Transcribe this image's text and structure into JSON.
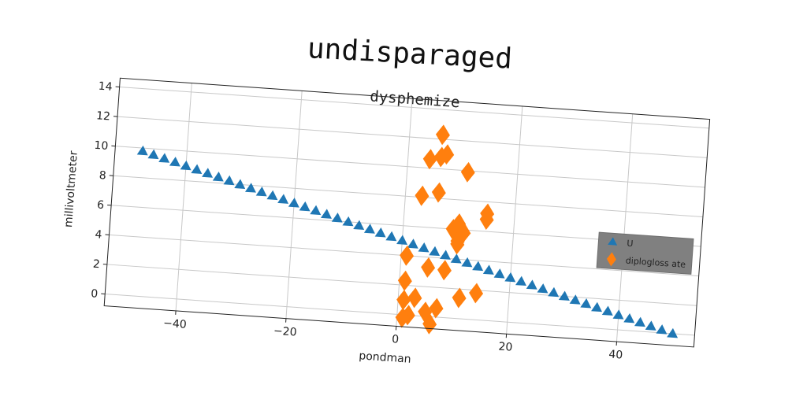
{
  "page": {
    "suptitle": "undisparaged"
  },
  "chart_data": {
    "type": "scatter",
    "title": "dysphemize",
    "xlabel": "pondman",
    "ylabel": "millivoltmeter",
    "xlim": [
      -53,
      54
    ],
    "ylim": [
      -0.8,
      14.6
    ],
    "xticks": [
      -40,
      -20,
      0,
      20,
      40
    ],
    "yticks": [
      0,
      2,
      4,
      6,
      8,
      10,
      12,
      14
    ],
    "grid": true,
    "legend_position": "right",
    "legend_background": "#808080",
    "series": [
      {
        "name": "U",
        "marker": "triangle",
        "color": "#1f77b4",
        "x": [
          -48,
          -46,
          -44,
          -42,
          -40,
          -38,
          -36,
          -34,
          -32,
          -30,
          -28,
          -26,
          -24,
          -22,
          -20,
          -18,
          -16,
          -14,
          -12,
          -10,
          -8,
          -6,
          -4,
          -2,
          0,
          2,
          4,
          6,
          8,
          10,
          12,
          14,
          16,
          18,
          20,
          22,
          24,
          26,
          28,
          30,
          32,
          34,
          36,
          38,
          40,
          42,
          44,
          46,
          48,
          50
        ],
        "y": [
          9.8,
          9.6,
          9.4,
          9.2,
          9.0,
          8.8,
          8.6,
          8.4,
          8.2,
          8.0,
          7.8,
          7.6,
          7.4,
          7.2,
          7.0,
          6.8,
          6.6,
          6.4,
          6.2,
          6.0,
          5.8,
          5.6,
          5.4,
          5.2,
          5.0,
          4.8,
          4.6,
          4.4,
          4.2,
          4.0,
          3.8,
          3.6,
          3.4,
          3.2,
          3.0,
          2.8,
          2.6,
          2.4,
          2.2,
          2.0,
          1.8,
          1.6,
          1.4,
          1.2,
          1.0,
          0.8,
          0.6,
          0.4,
          0.2,
          0.0
        ]
      },
      {
        "name": "diplogloss ate",
        "marker": "diamond",
        "color": "#ff7f0e",
        "x": [
          6,
          4,
          7,
          6,
          11,
          3,
          6,
          10,
          9,
          11,
          10,
          10,
          15,
          15,
          1,
          5,
          8,
          1,
          1,
          3,
          11,
          14,
          2,
          7,
          5,
          1,
          6
        ],
        "y": [
          12.3,
          10.6,
          11.0,
          10.8,
          9.9,
          8.1,
          8.4,
          6.4,
          6.0,
          5.8,
          5.2,
          5.0,
          7.2,
          6.8,
          4.0,
          3.3,
          3.2,
          2.3,
          1.0,
          1.2,
          1.4,
          1.8,
          0.0,
          0.6,
          0.3,
          -0.2,
          -0.5
        ]
      }
    ]
  }
}
